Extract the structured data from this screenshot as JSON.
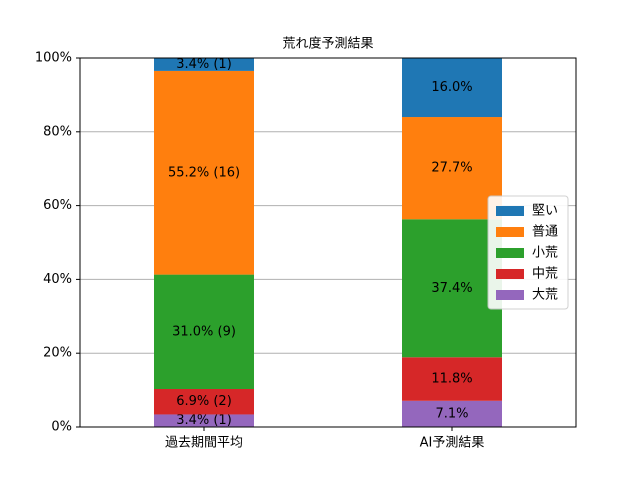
{
  "chart_data": {
    "type": "stacked_bar",
    "title": "荒れ度予測結果",
    "categories": [
      "過去期間平均",
      "AI予測結果"
    ],
    "series": [
      {
        "name": "大荒",
        "color": "#9467bd",
        "values": [
          3.4,
          7.1
        ],
        "value_labels": [
          "3.4% (1)",
          "7.1%"
        ]
      },
      {
        "name": "中荒",
        "color": "#d62728",
        "values": [
          6.9,
          11.8
        ],
        "value_labels": [
          "6.9% (2)",
          "11.8%"
        ]
      },
      {
        "name": "小荒",
        "color": "#2ca02c",
        "values": [
          31.0,
          37.4
        ],
        "value_labels": [
          "31.0% (9)",
          "37.4%"
        ]
      },
      {
        "name": "普通",
        "color": "#ff7f0e",
        "values": [
          55.2,
          27.7
        ],
        "value_labels": [
          "55.2% (16)",
          "27.7%"
        ]
      },
      {
        "name": "堅い",
        "color": "#1f77b4",
        "values": [
          3.4,
          16.0
        ],
        "value_labels": [
          "3.4% (1)",
          "16.0%"
        ]
      }
    ],
    "ylim": [
      0,
      100
    ],
    "yticks": [
      {
        "value": 0,
        "label": "0%"
      },
      {
        "value": 20,
        "label": "20%"
      },
      {
        "value": 40,
        "label": "40%"
      },
      {
        "value": 60,
        "label": "60%"
      },
      {
        "value": 80,
        "label": "80%"
      },
      {
        "value": 100,
        "label": "100%"
      }
    ],
    "grid": true,
    "legend": "center right"
  }
}
